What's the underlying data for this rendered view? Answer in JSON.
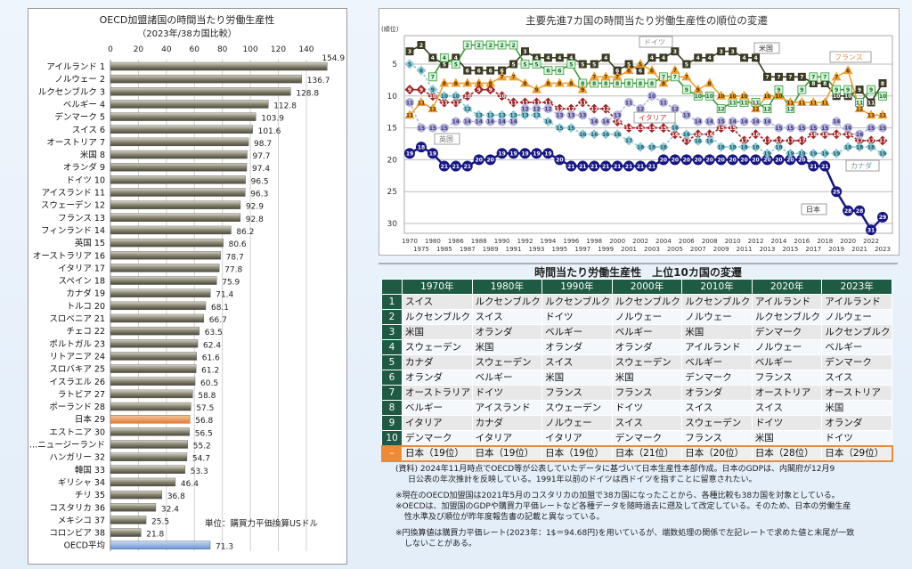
{
  "chart_data": [
    {
      "type": "bar",
      "orientation": "horizontal",
      "title": "OECD加盟諸国の時間当たり労働生産性",
      "subtitle": "（2023年/38カ国比較）",
      "xlim": [
        0,
        155
      ],
      "xticks": [
        "0",
        "20",
        "40",
        "60",
        "80",
        "100",
        "120",
        "140"
      ],
      "grid": true,
      "unit_note": "単位：購買力平価換算USドル",
      "categories": [
        "アイルランド 1",
        "ノルウェー 2",
        "ルクセンブルク 3",
        "ベルギー 4",
        "デンマーク 5",
        "スイス 6",
        "オーストリア 7",
        "米国 8",
        "オランダ 9",
        "ドイツ 10",
        "アイスランド 11",
        "スウェーデン 12",
        "フランス 13",
        "フィンランド 14",
        "英国 15",
        "オーストラリア 16",
        "イタリア 17",
        "スペイン 18",
        "カナダ 19",
        "トルコ 20",
        "スロベニア 21",
        "チェコ 22",
        "ポルトガル 23",
        "リトアニア 24",
        "スロバキア 25",
        "イスラエル 26",
        "ラトビア 27",
        "ポーランド 28",
        "日本 29",
        "エストニア 30",
        "…ニュージーランド",
        "ハンガリー 32",
        "韓国 33",
        "ギリシャ 34",
        "チリ 35",
        "コスタリカ 36",
        "メキシコ 37",
        "コロンビア 38",
        "OECD平均"
      ],
      "values": [
        154.9,
        136.7,
        128.8,
        112.8,
        103.9,
        101.6,
        98.7,
        97.7,
        97.4,
        96.5,
        96.3,
        92.9,
        92.8,
        86.2,
        80.6,
        78.7,
        77.8,
        75.9,
        71.4,
        68.1,
        66.7,
        63.5,
        62.4,
        61.6,
        61.2,
        60.5,
        58.8,
        57.5,
        56.8,
        56.5,
        55.2,
        54.7,
        53.3,
        46.4,
        36.8,
        32.4,
        25.5,
        21.8,
        71.3
      ],
      "value_labels": [
        "154.9",
        "136.7",
        "128.8",
        "112.8",
        "103.9",
        "101.6",
        "98.7",
        "97.7",
        "97.4",
        "96.5",
        "96.3",
        "92.9",
        "92.8",
        "86.2",
        "80.6",
        "78.7",
        "77.8",
        "75.9",
        "71.4",
        "68.1",
        "66.7",
        "63.5",
        "62.4",
        "61.6",
        "61.2",
        "60.5",
        "58.8",
        "57.5",
        "56.8",
        "56.5",
        "55.2",
        "54.7",
        "53.3",
        "46.4",
        "36.8",
        "32.4",
        "25.5",
        "21.8",
        "71.3"
      ],
      "colors": {
        "default": "#8a8674",
        "highlight_japan": "#ec8c4a",
        "oecd_average": "#8fb1e2"
      }
    },
    {
      "type": "line",
      "title": "主要先進7カ国の時間当たり労働生産性の順位の変遷",
      "ylabel": "(順位)",
      "ylim": [
        1,
        31
      ],
      "y_inverted": true,
      "yticks": [
        "5",
        "10",
        "15",
        "20",
        "25",
        "30"
      ],
      "grid": true,
      "x": [
        "1970",
        "1975",
        "1980",
        "1985",
        "1986",
        "1987",
        "1988",
        "1989",
        "1990",
        "1991",
        "1992",
        "1993",
        "1994",
        "1995",
        "1996",
        "1997",
        "1998",
        "1999",
        "2000",
        "2001",
        "2002",
        "2003",
        "2004",
        "2005",
        "2006",
        "2007",
        "2008",
        "2009",
        "2010",
        "2011",
        "2012",
        "2013",
        "2014",
        "2015",
        "2016",
        "2017",
        "2018",
        "2019",
        "2020",
        "2021",
        "2022",
        "2023"
      ],
      "series": [
        {
          "name": "米国",
          "color": "#3b3a22",
          "marker": "square",
          "values": [
            3,
            2,
            4,
            5,
            4,
            6,
            6,
            6,
            6,
            5,
            3,
            4,
            4,
            4,
            4,
            5,
            5,
            4,
            6,
            5,
            6,
            4,
            4,
            3,
            5,
            4,
            4,
            3,
            3,
            4,
            4,
            7,
            7,
            7,
            7,
            8,
            8,
            10,
            10,
            9,
            11,
            8
          ]
        },
        {
          "name": "ドイツ",
          "color": "#3a9a3a",
          "marker": "square-light",
          "values": [
            null,
            null,
            7,
            4,
            5,
            2,
            2,
            2,
            2,
            2,
            5,
            5,
            6,
            6,
            5,
            8,
            8,
            8,
            8,
            8,
            8,
            8,
            7,
            7,
            9,
            10,
            10,
            12,
            11,
            11,
            11,
            12,
            9,
            12,
            9,
            7,
            7,
            9,
            9,
            11,
            9,
            10
          ]
        },
        {
          "name": "フランス",
          "color": "#f0a030",
          "marker": "triangle",
          "values": [
            13,
            11,
            12,
            8,
            8,
            8,
            8,
            8,
            7,
            7,
            8,
            9,
            8,
            8,
            8,
            9,
            7,
            7,
            7,
            6,
            5,
            6,
            8,
            7,
            7,
            9,
            8,
            10,
            10,
            10,
            12,
            10,
            10,
            11,
            11,
            11,
            11,
            7,
            6,
            12,
            13,
            13
          ]
        },
        {
          "name": "イタリア",
          "color": "#a02424",
          "marker": "diamond",
          "values": [
            9,
            9,
            10,
            11,
            11,
            10,
            9,
            9,
            10,
            11,
            11,
            11,
            11,
            12,
            12,
            11,
            12,
            12,
            14,
            15,
            15,
            15,
            15,
            16,
            17,
            16,
            16,
            15,
            15,
            17,
            16,
            17,
            17,
            17,
            17,
            16,
            16,
            16,
            16,
            17,
            17,
            17
          ]
        },
        {
          "name": "英国",
          "color": "#b4b0dc",
          "marker": "circle",
          "values": [
            11,
            15,
            15,
            15,
            14,
            14,
            14,
            14,
            14,
            14,
            12,
            12,
            12,
            13,
            13,
            13,
            14,
            14,
            13,
            11,
            12,
            10,
            11,
            12,
            13,
            14,
            14,
            15,
            14,
            14,
            14,
            14,
            15,
            15,
            15,
            15,
            15,
            14,
            16,
            16,
            15,
            15
          ]
        },
        {
          "name": "カナダ",
          "color": "#8cc8d4",
          "marker": "diamond",
          "values": [
            5,
            6,
            9,
            10,
            10,
            12,
            13,
            13,
            13,
            13,
            13,
            13,
            14,
            15,
            15,
            16,
            16,
            16,
            16,
            17,
            18,
            18,
            18,
            16,
            16,
            16,
            16,
            18,
            18,
            18,
            18,
            19,
            18,
            19,
            19,
            19,
            19,
            19,
            18,
            18,
            18,
            19
          ]
        },
        {
          "name": "日本",
          "color": "#161685",
          "marker": "circle",
          "values": [
            19,
            18,
            19,
            21,
            21,
            21,
            20,
            20,
            19,
            19,
            19,
            19,
            19,
            20,
            21,
            21,
            21,
            21,
            21,
            21,
            21,
            21,
            20,
            20,
            20,
            20,
            20,
            20,
            20,
            20,
            20,
            20,
            20,
            20,
            20,
            21,
            21,
            25,
            28,
            28,
            31,
            29
          ]
        }
      ]
    }
  ],
  "table": {
    "title": "時間当たり労働生産性　上位10カ国の変遷",
    "headers": [
      "1970年",
      "1980年",
      "1990年",
      "2000年",
      "2010年",
      "2020年",
      "2023年"
    ],
    "rows": [
      {
        "rank": "1",
        "cells": [
          "スイス",
          "ルクセンブルク",
          "ルクセンブルク",
          "ルクセンブルク",
          "ルクセンブルク",
          "アイルランド",
          "アイルランド"
        ]
      },
      {
        "rank": "2",
        "cells": [
          "ルクセンブルク",
          "スイス",
          "ドイツ",
          "ノルウェー",
          "ノルウェー",
          "ルクセンブルク",
          "ノルウェー"
        ]
      },
      {
        "rank": "3",
        "cells": [
          "米国",
          "オランダ",
          "ベルギー",
          "ベルギー",
          "米国",
          "デンマーク",
          "ルクセンブルク"
        ]
      },
      {
        "rank": "4",
        "cells": [
          "スウェーデン",
          "米国",
          "オランダ",
          "オランダ",
          "アイルランド",
          "ノルウェー",
          "ベルギー"
        ]
      },
      {
        "rank": "5",
        "cells": [
          "カナダ",
          "スウェーデン",
          "スイス",
          "スウェーデン",
          "ベルギー",
          "ベルギー",
          "デンマーク"
        ]
      },
      {
        "rank": "6",
        "cells": [
          "オランダ",
          "ベルギー",
          "米国",
          "米国",
          "デンマーク",
          "フランス",
          "スイス"
        ]
      },
      {
        "rank": "7",
        "cells": [
          "オーストラリア",
          "ドイツ",
          "フランス",
          "フランス",
          "オランダ",
          "オーストリア",
          "オーストリア"
        ]
      },
      {
        "rank": "8",
        "cells": [
          "ベルギー",
          "アイスランド",
          "スウェーデン",
          "ドイツ",
          "スイス",
          "スイス",
          "米国"
        ]
      },
      {
        "rank": "9",
        "cells": [
          "イタリア",
          "カナダ",
          "ノルウェー",
          "スイス",
          "スウェーデン",
          "ドイツ",
          "オランダ"
        ]
      },
      {
        "rank": "10",
        "cells": [
          "デンマーク",
          "イタリア",
          "イタリア",
          "デンマーク",
          "フランス",
          "米国",
          "ドイツ"
        ]
      },
      {
        "rank": "–",
        "cells": [
          "日本（19位）",
          "日本（19位）",
          "日本（19位）",
          "日本（21位）",
          "日本（20位）",
          "日本（28位）",
          "日本（29位）"
        ]
      }
    ]
  },
  "notes": {
    "source_1": "(資料) 2024年11月時点でOECD等が公表していたデータに基づいて日本生産性本部作成。日本のGDPは、内閣府が12月9",
    "source_2": "日公表の年次推計を反映している。1991年以前のドイツは西ドイツを指すことに留意されたい。",
    "note_1": "※現在のOECD加盟国は2021年5月のコスタリカの加盟で38カ国になったことから、各種比較も38カ国を対象としている。",
    "note_2a": "※OECDは、加盟国のGDPや購買力平価レートなど各種データを随時過去に遡及して改定している。そのため、日本の労働生産",
    "note_2b": "性水準及び順位が昨年度報告書の記載と異なっている。",
    "note_3a": "※円換算値は購買力平価レート(2023年：1$＝94.68円)を用いているが、端数処理の関係で左記レートで求めた値と末尾が一致",
    "note_3b": "しないことがある。"
  }
}
